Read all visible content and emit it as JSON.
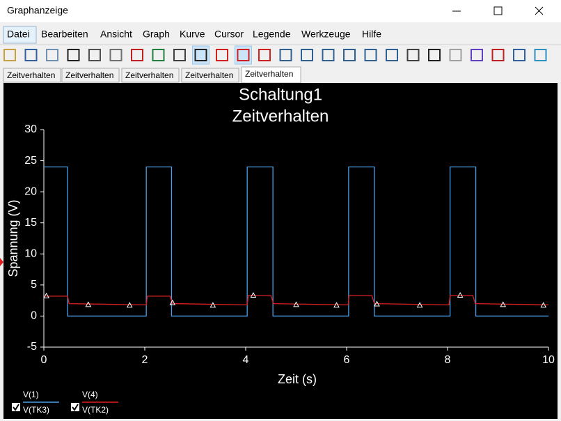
{
  "window": {
    "title": "Graphanzeige"
  },
  "menu": [
    "Datei",
    "Bearbeiten",
    "Ansicht",
    "Graph",
    "Kurve",
    "Cursor",
    "Legende",
    "Werkzeuge",
    "Hilfe"
  ],
  "tabs": [
    "Zeitverhalten",
    "Zeitverhalten",
    "Zeitverhalten",
    "Zeitverhalten",
    "Zeitverhalten"
  ],
  "chart_data": {
    "type": "line",
    "title": "Schaltung1",
    "subtitle": "Zeitverhalten",
    "x_label": "Zeit (s)",
    "y_label": "Spannung (V)",
    "xlim": [
      0,
      10
    ],
    "ylim": [
      -5,
      30
    ],
    "xticks": [
      0,
      2,
      4,
      6,
      8,
      10
    ],
    "yticks": [
      -5,
      0,
      5,
      10,
      15,
      20,
      25,
      30
    ],
    "series": [
      {
        "name": "V(1)",
        "label": "V(TK3)",
        "color": "#4a9fe8",
        "x": [
          0,
          0.47,
          0.47,
          2.03,
          2.03,
          2.53,
          2.53,
          4.03,
          4.03,
          4.54,
          4.54,
          6.04,
          6.04,
          6.55,
          6.55,
          8.05,
          8.05,
          8.56,
          8.56,
          10
        ],
        "values": [
          24,
          24,
          0,
          0,
          24,
          24,
          0,
          0,
          24,
          24,
          0,
          0,
          24,
          24,
          0,
          0,
          24,
          24,
          0,
          0
        ]
      },
      {
        "name": "V(4)",
        "label": "V(TK2)",
        "color": "#e02020",
        "x": [
          0,
          0.47,
          0.5,
          2.03,
          2.05,
          2.5,
          2.55,
          4.03,
          4.05,
          4.5,
          4.55,
          6.03,
          6.05,
          6.5,
          6.55,
          8.03,
          8.05,
          8.5,
          8.55,
          10
        ],
        "values": [
          3.2,
          3.2,
          2.0,
          1.8,
          3.2,
          3.2,
          2.0,
          1.8,
          3.3,
          3.3,
          2.0,
          1.8,
          3.3,
          3.3,
          2.0,
          1.8,
          3.3,
          3.3,
          2.0,
          1.8
        ],
        "markers": {
          "x": [
            0.05,
            0.88,
            1.7,
            2.55,
            3.35,
            4.15,
            5.0,
            5.8,
            6.6,
            7.45,
            8.25,
            9.1,
            9.9
          ],
          "values": [
            3.2,
            1.8,
            1.7,
            2.1,
            1.7,
            3.3,
            1.8,
            1.7,
            1.9,
            1.7,
            3.3,
            1.8,
            1.7
          ]
        }
      }
    ]
  }
}
